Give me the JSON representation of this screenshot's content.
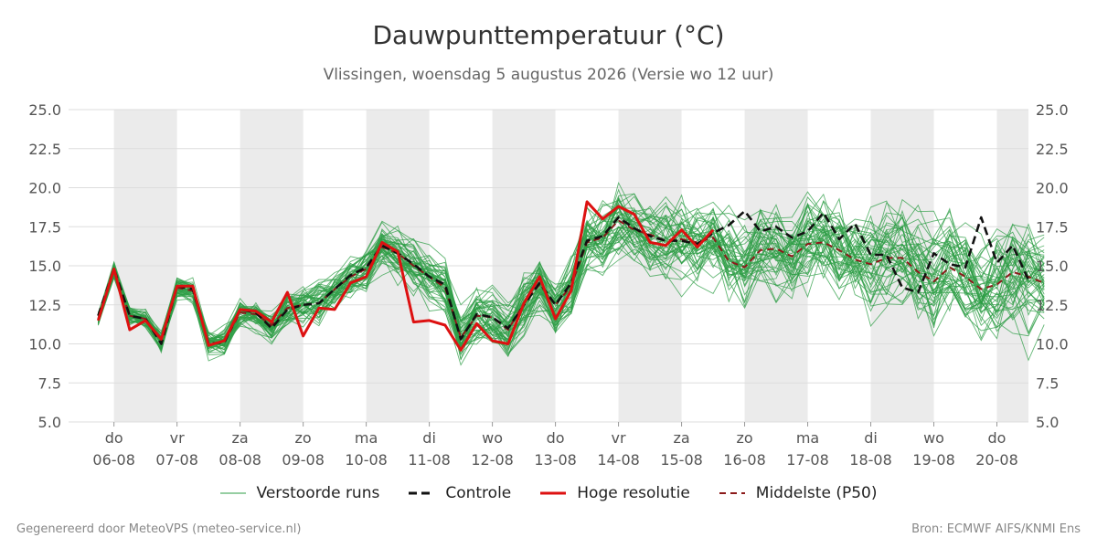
{
  "header": {
    "title": "Dauwpunttemperatuur (°C)",
    "subtitle": "Vlissingen, woensdag  5 augustus 2026 (Versie wo 12 uur)"
  },
  "footer": {
    "left": "Gegenereerd door MeteoVPS (meteo-service.nl)",
    "right": "Bron: ECMWF AIFS/KNMI Ens"
  },
  "legend": {
    "ensemble": "Verstoorde runs",
    "control": "Controle",
    "hires": "Hoge resolutie",
    "median": "Middelste (P50)"
  },
  "colors": {
    "ensemble": "#2e9e45",
    "control": "#111111",
    "hires": "#dd1111",
    "median": "#8b1a1a",
    "weekend_band": "#ebebeb",
    "grid": "#dddddd"
  },
  "chart_data": {
    "type": "line",
    "title": "Dauwpunttemperatuur (°C)",
    "ylim": [
      5,
      25
    ],
    "yticks": [
      "5.0",
      "7.5",
      "10.0",
      "12.5",
      "15.0",
      "17.5",
      "20.0",
      "22.5",
      "25.0"
    ],
    "x_unit": "days since 06-08 00h",
    "xlim": [
      -0.72,
      14.5
    ],
    "days": [
      {
        "weekday": "do",
        "date": "06-08"
      },
      {
        "weekday": "vr",
        "date": "07-08"
      },
      {
        "weekday": "za",
        "date": "08-08"
      },
      {
        "weekday": "zo",
        "date": "09-08"
      },
      {
        "weekday": "ma",
        "date": "10-08"
      },
      {
        "weekday": "di",
        "date": "11-08"
      },
      {
        "weekday": "wo",
        "date": "12-08"
      },
      {
        "weekday": "do",
        "date": "13-08"
      },
      {
        "weekday": "vr",
        "date": "14-08"
      },
      {
        "weekday": "za",
        "date": "15-08"
      },
      {
        "weekday": "zo",
        "date": "16-08"
      },
      {
        "weekday": "ma",
        "date": "17-08"
      },
      {
        "weekday": "di",
        "date": "18-08"
      },
      {
        "weekday": "wo",
        "date": "19-08"
      },
      {
        "weekday": "do",
        "date": "20-08"
      }
    ],
    "shaded_bands": [
      [
        0,
        1
      ],
      [
        2,
        3
      ],
      [
        4,
        5
      ],
      [
        6,
        7
      ],
      [
        8,
        9
      ],
      [
        10,
        11
      ],
      [
        12,
        13
      ],
      [
        14,
        14.5
      ]
    ],
    "series": [
      {
        "name": "Hoge resolutie",
        "x_start": -0.25,
        "x_step": 0.25,
        "values": [
          11.5,
          14.8,
          10.9,
          11.5,
          10.3,
          13.7,
          13.7,
          9.9,
          10.2,
          12.2,
          12.1,
          11.4,
          13.3,
          10.5,
          12.3,
          12.2,
          13.9,
          14.3,
          16.5,
          15.9,
          11.4,
          11.5,
          11.2,
          9.6,
          11.3,
          10.2,
          10.0,
          12.6,
          14.3,
          11.6,
          13.4,
          19.1,
          18.0,
          18.8,
          18.3,
          16.5,
          16.3,
          17.3,
          16.2,
          17.3
        ]
      },
      {
        "name": "Controle",
        "x_start": -0.25,
        "x_step": 0.25,
        "values": [
          11.8,
          14.8,
          11.8,
          11.6,
          10.0,
          13.7,
          13.5,
          10.0,
          10.1,
          12.2,
          12.0,
          11.0,
          12.2,
          12.5,
          12.6,
          13.5,
          14.4,
          14.9,
          16.3,
          15.8,
          15.1,
          14.3,
          13.8,
          10.3,
          11.9,
          11.7,
          11.0,
          12.5,
          13.9,
          12.5,
          13.9,
          16.6,
          16.9,
          18.1,
          17.4,
          16.9,
          16.6,
          16.6,
          16.4,
          17.1,
          17.6,
          18.5,
          17.2,
          17.5,
          16.8,
          17.2,
          18.4,
          16.7,
          17.7,
          15.7,
          15.7,
          13.6,
          13.3,
          15.8,
          15.1,
          14.9,
          18.1,
          15.2,
          16.3,
          14.1
        ]
      },
      {
        "name": "Middelste (P50)",
        "x_start": -0.25,
        "x_step": 0.25,
        "values": [
          11.6,
          14.7,
          11.8,
          11.6,
          10.2,
          13.6,
          13.4,
          10.0,
          10.1,
          12.0,
          11.9,
          11.2,
          12.3,
          12.5,
          12.6,
          13.5,
          14.3,
          14.8,
          16.2,
          15.8,
          15.0,
          14.3,
          13.6,
          10.4,
          11.8,
          11.7,
          10.9,
          12.6,
          13.8,
          12.5,
          13.7,
          16.5,
          16.8,
          17.9,
          17.3,
          17.0,
          16.6,
          16.7,
          16.5,
          16.8,
          15.3,
          14.9,
          16.0,
          16.1,
          15.6,
          16.4,
          16.5,
          16.0,
          15.4,
          15.1,
          15.5,
          15.5,
          14.6,
          14.0,
          14.9,
          14.3,
          13.5,
          13.8,
          14.6,
          14.3,
          13.9
        ]
      }
    ]
  }
}
